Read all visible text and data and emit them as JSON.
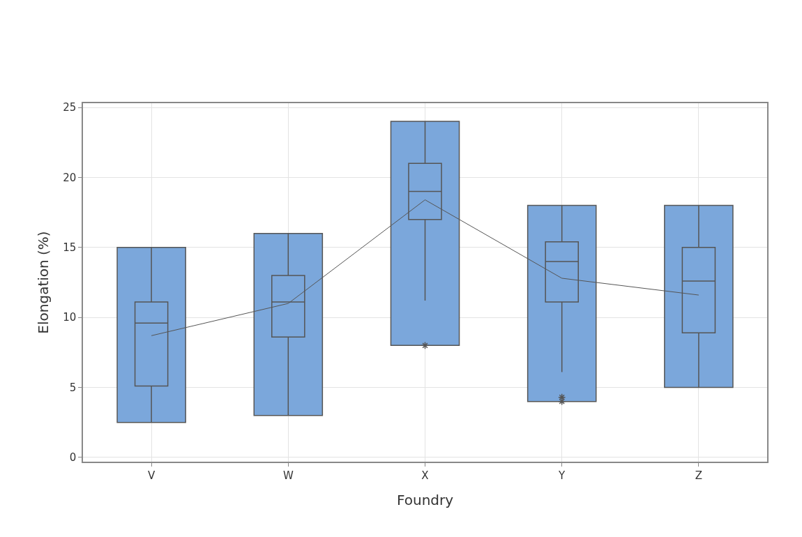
{
  "chart_data": {
    "type": "box",
    "xlabel": "Foundry",
    "ylabel": "Elongation (%)",
    "categories": [
      "V",
      "W",
      "X",
      "Y",
      "Z"
    ],
    "ylim": [
      -0.3,
      25.3
    ],
    "yticks": [
      0,
      5,
      10,
      15,
      20,
      25
    ],
    "grid": true,
    "series": [
      {
        "type": "bar",
        "color": "#7ba7db",
        "base": [
          2.5,
          3,
          8,
          4,
          5
        ],
        "values": [
          12.5,
          13,
          16,
          14,
          13
        ]
      },
      {
        "color": "#7ba7db",
        "boxes": [
          {
            "low": 2.5,
            "q1": 5.1,
            "median": 9.6,
            "q3": 11.1,
            "high": 15
          },
          {
            "low": 3,
            "q1": 8.6,
            "median": 11.1,
            "q3": 13,
            "high": 16
          },
          {
            "low": 11.2,
            "q1": 17,
            "median": 19,
            "q3": 21,
            "high": 24,
            "outliers": [
              8
            ]
          },
          {
            "low": 6.1,
            "q1": 11.1,
            "median": 14,
            "q3": 15.4,
            "high": 18,
            "outliers": [
              4.3,
              4
            ]
          },
          {
            "low": 5,
            "q1": 8.9,
            "median": 12.6,
            "q3": 15,
            "high": 18
          }
        ]
      },
      {
        "type": "line",
        "color": "#555555",
        "values": [
          8.7,
          11,
          18.4,
          12.8,
          11.6
        ]
      }
    ]
  }
}
